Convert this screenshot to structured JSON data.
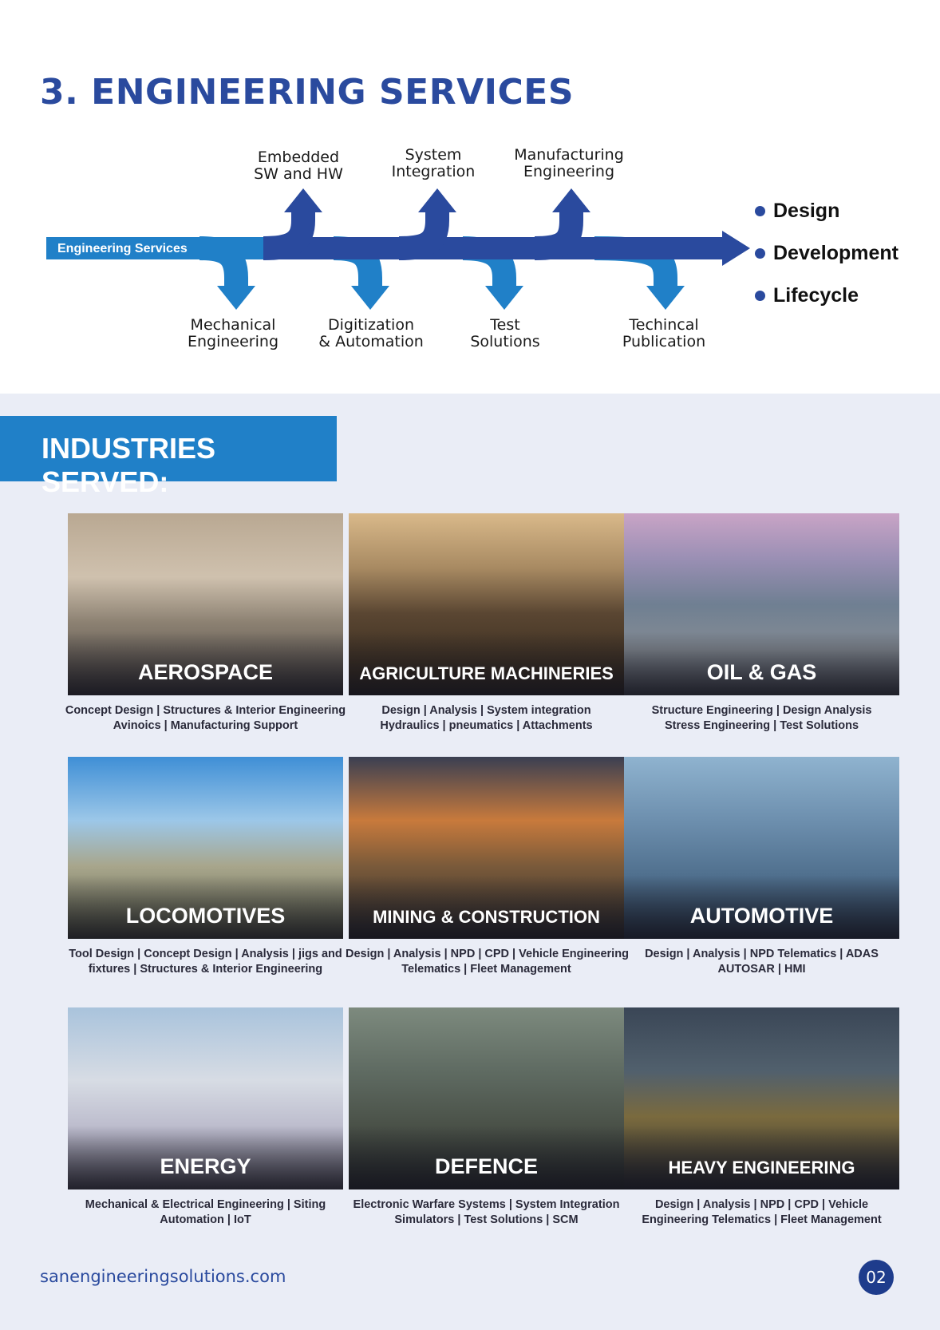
{
  "section_title": "3. ENGINEERING SERVICES",
  "diagram": {
    "main_label": "Engineering Services",
    "up_labels": [
      "Embedded\nSW and HW",
      "System\nIntegration",
      "Manufacturing\nEngineering"
    ],
    "down_labels": [
      "Mechanical\nEngineering",
      "Digitization\n& Automation",
      "Test\nSolutions",
      "Techincal\nPublication"
    ],
    "bullets": [
      "Design",
      "Development",
      "Lifecycle"
    ],
    "colors": {
      "dark_blue": "#2a4a9e",
      "light_blue": "#2080c8"
    }
  },
  "industries": {
    "banner": "INDUSTRIES SERVED:",
    "cards": [
      {
        "title": "AEROSPACE",
        "desc": "Concept Design | Structures & Interior Engineering\nAvinoics | Manufacturing Support"
      },
      {
        "title": "AGRICULTURE MACHINERIES",
        "desc": "Design | Analysis | System integration\nHydraulics | pneumatics | Attachments"
      },
      {
        "title": "OIL & GAS",
        "desc": "Structure Engineering | Design Analysis\nStress Engineering | Test Solutions"
      },
      {
        "title": "LOCOMOTIVES",
        "desc": "Tool Design | Concept Design | Analysis | jigs and\nfixtures | Structures & Interior Engineering"
      },
      {
        "title": "MINING & CONSTRUCTION",
        "desc": "Design | Analysis | NPD | CPD | Vehicle Engineering\nTelematics | Fleet Management"
      },
      {
        "title": "AUTOMOTIVE",
        "desc": "Design | Analysis | NPD Telematics | ADAS\nAUTOSAR | HMI"
      },
      {
        "title": "ENERGY",
        "desc": "Mechanical & Electrical Engineering | Siting\nAutomation | IoT"
      },
      {
        "title": "DEFENCE",
        "desc": "Electronic Warfare Systems | System Integration\nSimulators | Test Solutions | SCM"
      },
      {
        "title": "HEAVY ENGINEERING",
        "desc": "Design | Analysis | NPD | CPD | Vehicle\nEngineering Telematics | Fleet Management"
      }
    ]
  },
  "footer": {
    "url": "sanengineeringsolutions.com",
    "page": "02"
  }
}
